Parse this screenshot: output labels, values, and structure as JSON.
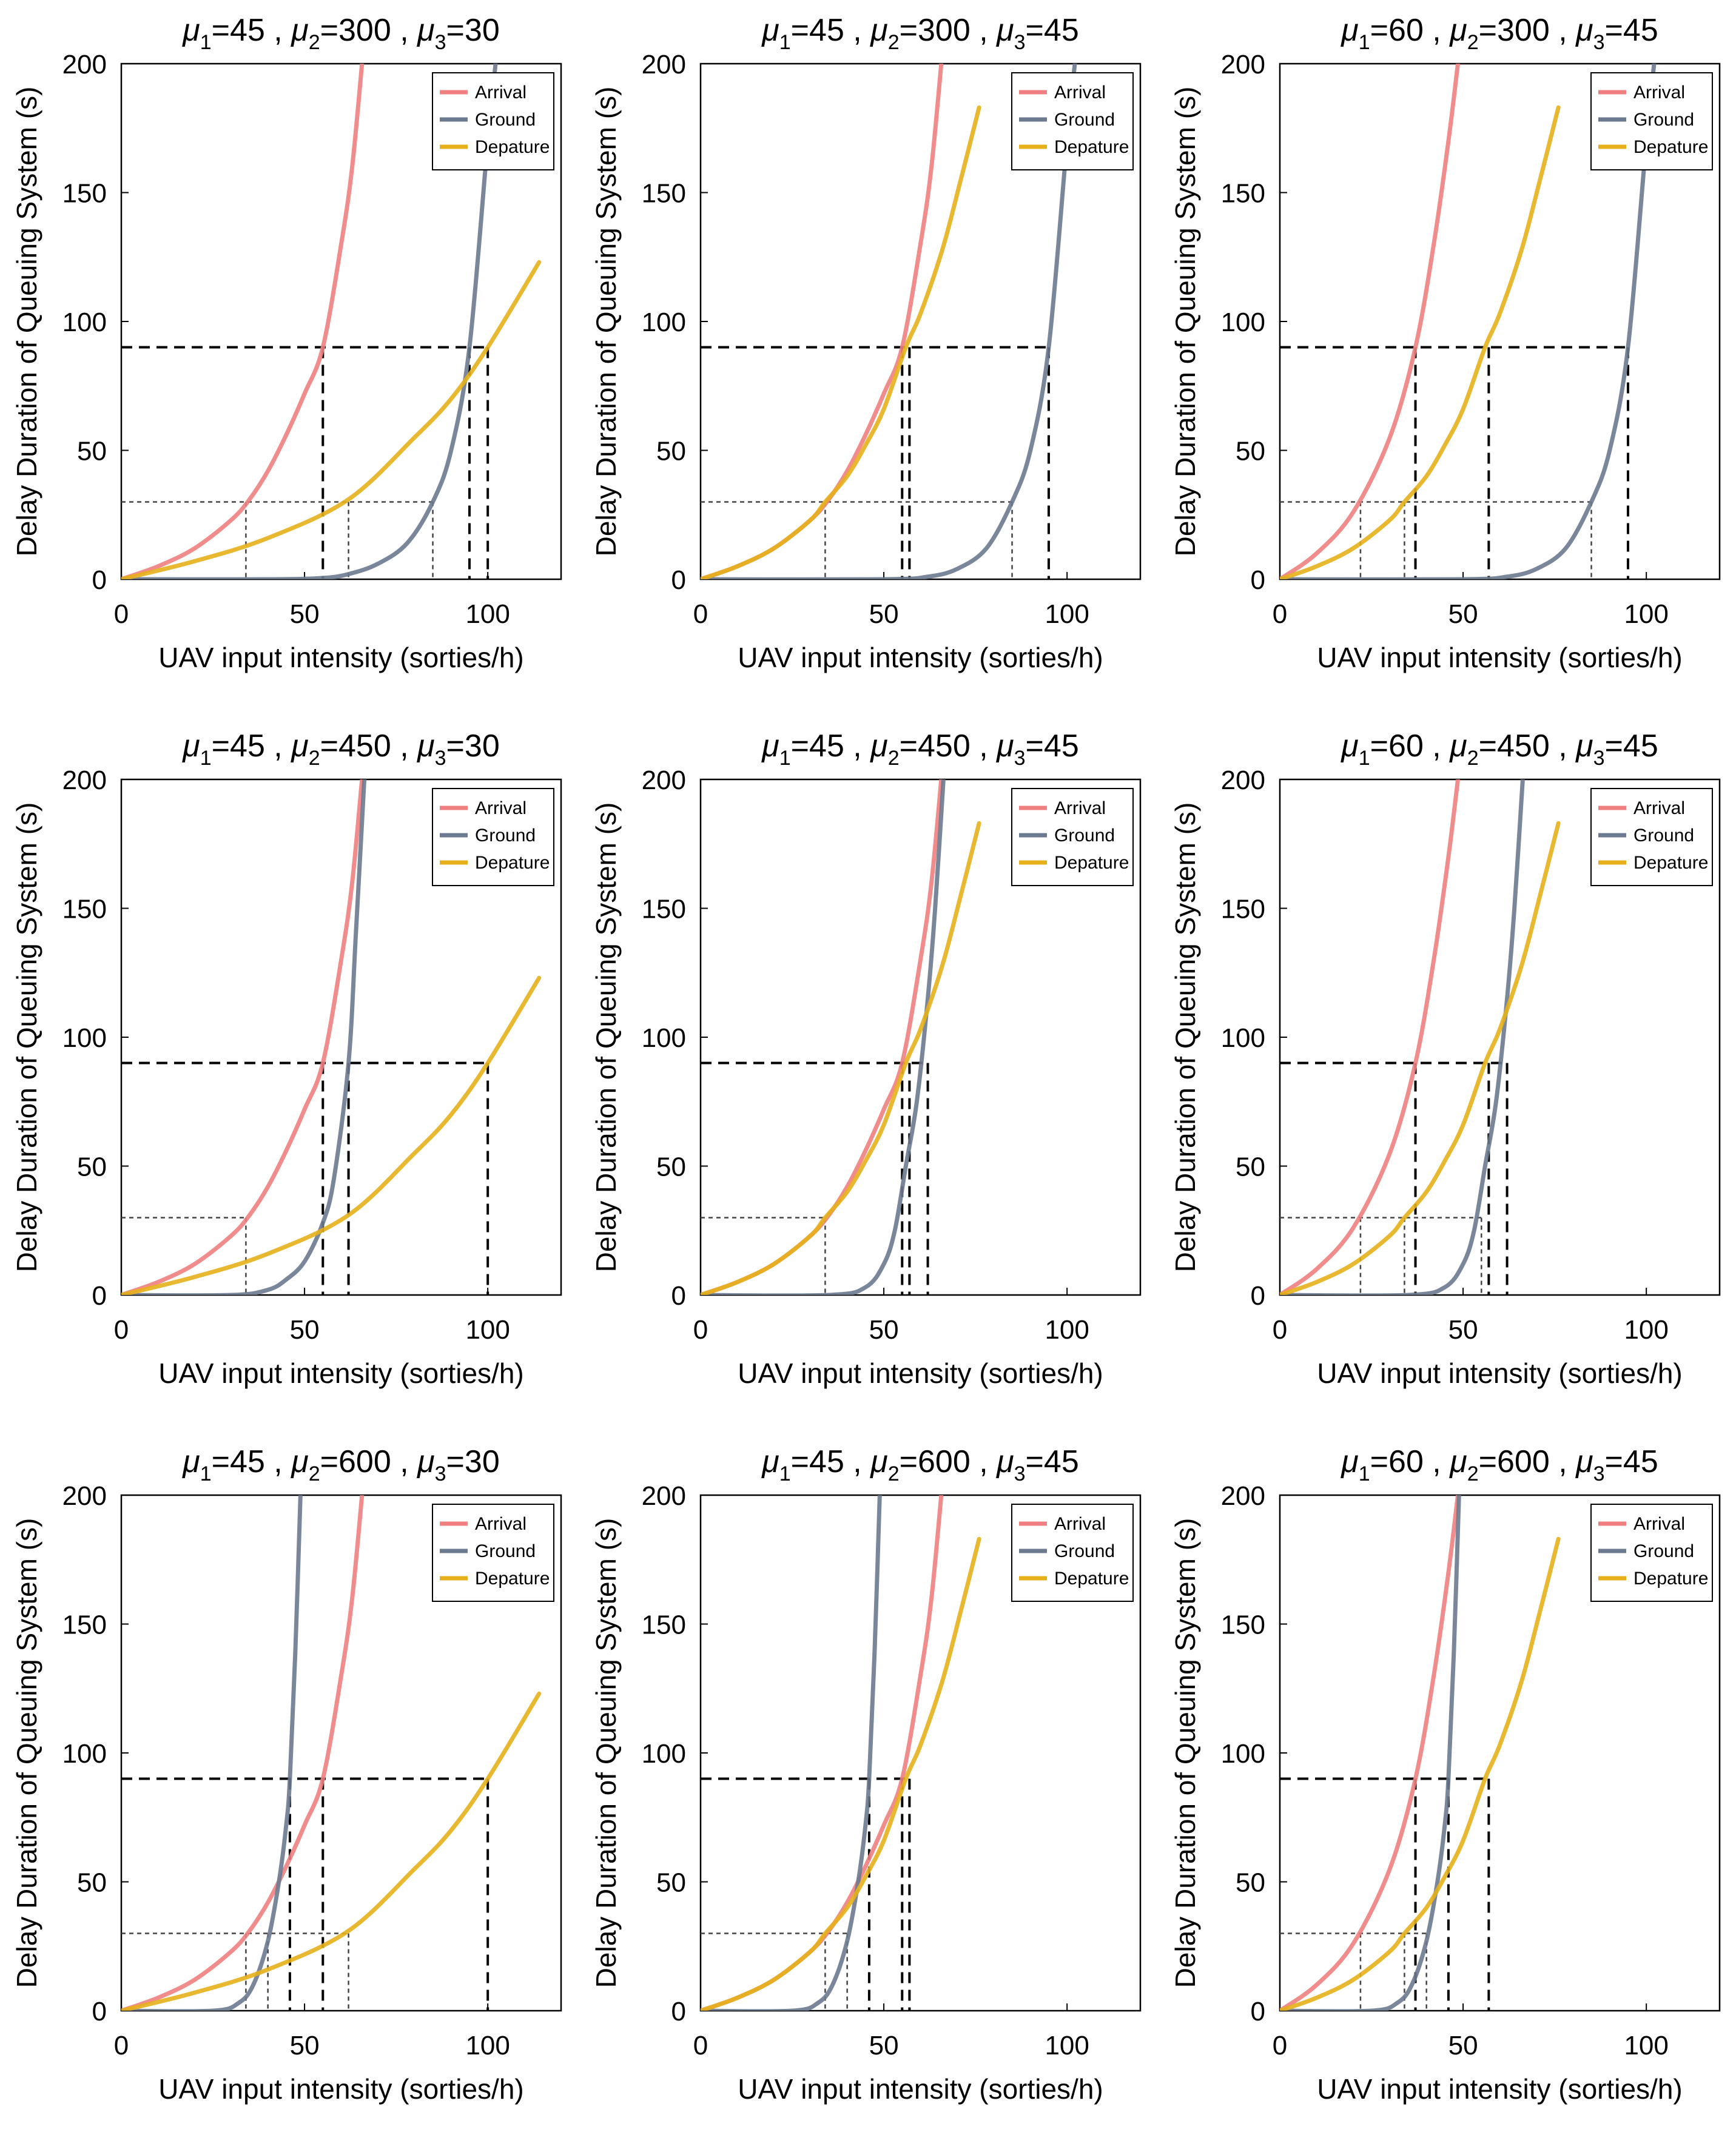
{
  "figure": {
    "xlabel": "UAV input intensity (sorties/h)",
    "ylabel": "Delay Duration of Queuing System (s)",
    "legend": [
      "Arrival",
      "Ground",
      "Depature"
    ],
    "colors": {
      "arrival": "#f08080",
      "ground": "#6b7a8f",
      "departure": "#e5b01a"
    }
  },
  "chart_data": [
    {
      "type": "line",
      "title_parts": [
        "μ",
        "1",
        "=45 , ",
        "μ",
        "2",
        "=300 , ",
        "μ",
        "3",
        "=30"
      ],
      "xlim": [
        0,
        120
      ],
      "ylim": [
        0,
        200
      ],
      "xticks": [
        0,
        50,
        100
      ],
      "yticks": [
        0,
        50,
        100,
        150,
        200
      ],
      "xlabel": "UAV input intensity (sorties/h)",
      "ylabel": "Delay Duration of Queuing System (s)",
      "series": [
        {
          "name": "Arrival",
          "x": [
            0,
            10,
            20,
            30,
            35,
            40,
            45,
            50,
            55,
            60,
            63,
            66
          ],
          "y": [
            0,
            5,
            12,
            23,
            31,
            42,
            56,
            72,
            90,
            130,
            160,
            205
          ]
        },
        {
          "name": "Ground",
          "x": [
            0,
            40,
            55,
            62,
            70,
            78,
            85,
            90,
            95,
            100,
            102.5
          ],
          "y": [
            0,
            0,
            0.5,
            2,
            6,
            14,
            30,
            50,
            90,
            170,
            205
          ]
        },
        {
          "name": "Depature",
          "x": [
            0,
            20,
            40,
            62,
            80,
            90,
            100,
            114
          ],
          "y": [
            0,
            7,
            16,
            31,
            55,
            70,
            90,
            123
          ]
        }
      ],
      "ref_lines": {
        "major_y": 90,
        "major_x": [
          55,
          95,
          100
        ],
        "minor_y": 30,
        "minor_x": [
          34,
          62,
          85
        ]
      }
    },
    {
      "type": "line",
      "title_parts": [
        "μ",
        "1",
        "=45 , ",
        "μ",
        "2",
        "=300 , ",
        "μ",
        "3",
        "=45"
      ],
      "xlim": [
        0,
        120
      ],
      "ylim": [
        0,
        200
      ],
      "xticks": [
        0,
        50,
        100
      ],
      "yticks": [
        0,
        50,
        100,
        150,
        200
      ],
      "xlabel": "UAV input intensity (sorties/h)",
      "ylabel": "Delay Duration of Queuing System (s)",
      "series": [
        {
          "name": "Arrival",
          "x": [
            0,
            10,
            20,
            30,
            35,
            40,
            45,
            50,
            55,
            60,
            63,
            66
          ],
          "y": [
            0,
            5,
            12,
            23,
            31,
            42,
            56,
            72,
            90,
            130,
            160,
            205
          ]
        },
        {
          "name": "Ground",
          "x": [
            0,
            50,
            62,
            70,
            78,
            85,
            90,
            95,
            100,
            102.5
          ],
          "y": [
            0,
            0,
            1,
            4,
            12,
            30,
            50,
            90,
            170,
            205
          ]
        },
        {
          "name": "Depature",
          "x": [
            0,
            10,
            20,
            30,
            34,
            40,
            45,
            50,
            56,
            60,
            66,
            71,
            76
          ],
          "y": [
            0,
            5,
            12,
            23,
            30,
            40,
            52,
            66,
            90,
            103,
            128,
            155,
            183
          ]
        }
      ],
      "ref_lines": {
        "major_y": 90,
        "major_x": [
          55,
          57,
          95
        ],
        "minor_y": 30,
        "minor_x": [
          34,
          85
        ]
      }
    },
    {
      "type": "line",
      "title_parts": [
        "μ",
        "1",
        "=60 , ",
        "μ",
        "2",
        "=300 , ",
        "μ",
        "3",
        "=45"
      ],
      "xlim": [
        0,
        120
      ],
      "ylim": [
        0,
        200
      ],
      "xticks": [
        0,
        50,
        100
      ],
      "yticks": [
        0,
        50,
        100,
        150,
        200
      ],
      "xlabel": "UAV input intensity (sorties/h)",
      "ylabel": "Delay Duration of Queuing System (s)",
      "series": [
        {
          "name": "Arrival",
          "x": [
            0,
            10,
            20,
            30,
            37,
            42,
            46,
            49
          ],
          "y": [
            0,
            10,
            26,
            55,
            90,
            130,
            170,
            205
          ]
        },
        {
          "name": "Ground",
          "x": [
            0,
            50,
            62,
            70,
            78,
            85,
            90,
            95,
            100,
            102.5
          ],
          "y": [
            0,
            0,
            1,
            4,
            12,
            30,
            50,
            90,
            170,
            205
          ]
        },
        {
          "name": "Depature",
          "x": [
            0,
            10,
            20,
            30,
            34,
            40,
            45,
            50,
            56,
            60,
            66,
            71,
            76
          ],
          "y": [
            0,
            5,
            12,
            23,
            30,
            40,
            52,
            66,
            90,
            103,
            128,
            155,
            183
          ]
        }
      ],
      "ref_lines": {
        "major_y": 90,
        "major_x": [
          37,
          57,
          95
        ],
        "minor_y": 30,
        "minor_x": [
          22,
          34,
          85
        ]
      }
    },
    {
      "type": "line",
      "title_parts": [
        "μ",
        "1",
        "=45 , ",
        "μ",
        "2",
        "=450 , ",
        "μ",
        "3",
        "=30"
      ],
      "xlim": [
        0,
        120
      ],
      "ylim": [
        0,
        200
      ],
      "xticks": [
        0,
        50,
        100
      ],
      "yticks": [
        0,
        50,
        100,
        150,
        200
      ],
      "xlabel": "UAV input intensity (sorties/h)",
      "ylabel": "Delay Duration of Queuing System (s)",
      "series": [
        {
          "name": "Arrival",
          "x": [
            0,
            10,
            20,
            30,
            35,
            40,
            45,
            50,
            55,
            60,
            63,
            66
          ],
          "y": [
            0,
            5,
            12,
            23,
            31,
            42,
            56,
            72,
            90,
            130,
            160,
            205
          ]
        },
        {
          "name": "Ground",
          "x": [
            0,
            30,
            40,
            45,
            50,
            55,
            58,
            62,
            64,
            66.5
          ],
          "y": [
            0,
            0,
            2,
            6,
            13,
            28,
            45,
            90,
            140,
            205
          ]
        },
        {
          "name": "Depature",
          "x": [
            0,
            20,
            40,
            62,
            80,
            90,
            100,
            114
          ],
          "y": [
            0,
            7,
            16,
            31,
            55,
            70,
            90,
            123
          ]
        }
      ],
      "ref_lines": {
        "major_y": 90,
        "major_x": [
          55,
          62,
          100
        ],
        "minor_y": 30,
        "minor_x": [
          34
        ]
      }
    },
    {
      "type": "line",
      "title_parts": [
        "μ",
        "1",
        "=45 , ",
        "μ",
        "2",
        "=450 , ",
        "μ",
        "3",
        "=45"
      ],
      "xlim": [
        0,
        120
      ],
      "ylim": [
        0,
        200
      ],
      "xticks": [
        0,
        50,
        100
      ],
      "yticks": [
        0,
        50,
        100,
        150,
        200
      ],
      "xlabel": "UAV input intensity (sorties/h)",
      "ylabel": "Delay Duration of Queuing System (s)",
      "series": [
        {
          "name": "Arrival",
          "x": [
            0,
            10,
            20,
            30,
            35,
            40,
            45,
            50,
            55,
            60,
            63,
            66
          ],
          "y": [
            0,
            5,
            12,
            23,
            31,
            42,
            56,
            72,
            90,
            130,
            160,
            205
          ]
        },
        {
          "name": "Ground",
          "x": [
            0,
            35,
            45,
            50,
            53,
            56,
            59,
            62,
            64,
            66.5
          ],
          "y": [
            0,
            0,
            3,
            12,
            25,
            50,
            75,
            115,
            150,
            205
          ]
        },
        {
          "name": "Depature",
          "x": [
            0,
            10,
            20,
            30,
            34,
            40,
            45,
            50,
            56,
            60,
            66,
            71,
            76
          ],
          "y": [
            0,
            5,
            12,
            23,
            30,
            40,
            52,
            66,
            90,
            103,
            128,
            155,
            183
          ]
        }
      ],
      "ref_lines": {
        "major_y": 90,
        "major_x": [
          55,
          57,
          62
        ],
        "minor_y": 30,
        "minor_x": [
          34
        ]
      }
    },
    {
      "type": "line",
      "title_parts": [
        "μ",
        "1",
        "=60 , ",
        "μ",
        "2",
        "=450 , ",
        "μ",
        "3",
        "=45"
      ],
      "xlim": [
        0,
        120
      ],
      "ylim": [
        0,
        200
      ],
      "xticks": [
        0,
        50,
        100
      ],
      "yticks": [
        0,
        50,
        100,
        150,
        200
      ],
      "xlabel": "UAV input intensity (sorties/h)",
      "ylabel": "Delay Duration of Queuing System (s)",
      "series": [
        {
          "name": "Arrival",
          "x": [
            0,
            10,
            20,
            30,
            37,
            42,
            46,
            49
          ],
          "y": [
            0,
            10,
            26,
            55,
            90,
            130,
            170,
            205
          ]
        },
        {
          "name": "Ground",
          "x": [
            0,
            35,
            45,
            50,
            53,
            56,
            59,
            62,
            64,
            66.5
          ],
          "y": [
            0,
            0,
            3,
            12,
            25,
            50,
            75,
            115,
            150,
            205
          ]
        },
        {
          "name": "Depature",
          "x": [
            0,
            10,
            20,
            30,
            34,
            40,
            45,
            50,
            56,
            60,
            66,
            71,
            76
          ],
          "y": [
            0,
            5,
            12,
            23,
            30,
            40,
            52,
            66,
            90,
            103,
            128,
            155,
            183
          ]
        }
      ],
      "ref_lines": {
        "major_y": 90,
        "major_x": [
          37,
          57,
          62
        ],
        "minor_y": 30,
        "minor_x": [
          22,
          34,
          55
        ]
      }
    },
    {
      "type": "line",
      "title_parts": [
        "μ",
        "1",
        "=45 , ",
        "μ",
        "2",
        "=600 , ",
        "μ",
        "3",
        "=30"
      ],
      "xlim": [
        0,
        120
      ],
      "ylim": [
        0,
        200
      ],
      "xticks": [
        0,
        50,
        100
      ],
      "yticks": [
        0,
        50,
        100,
        150,
        200
      ],
      "xlabel": "UAV input intensity (sorties/h)",
      "ylabel": "Delay Duration of Queuing System (s)",
      "series": [
        {
          "name": "Arrival",
          "x": [
            0,
            10,
            20,
            30,
            35,
            40,
            45,
            50,
            55,
            60,
            63,
            66
          ],
          "y": [
            0,
            5,
            12,
            23,
            31,
            42,
            56,
            72,
            90,
            130,
            160,
            205
          ]
        },
        {
          "name": "Ground",
          "x": [
            0,
            25,
            32,
            36,
            40,
            43,
            45,
            46,
            47.5,
            49
          ],
          "y": [
            0,
            0,
            3,
            10,
            27,
            50,
            72,
            90,
            140,
            205
          ]
        },
        {
          "name": "Depature",
          "x": [
            0,
            20,
            40,
            62,
            80,
            90,
            100,
            114
          ],
          "y": [
            0,
            7,
            16,
            31,
            55,
            70,
            90,
            123
          ]
        }
      ],
      "ref_lines": {
        "major_y": 90,
        "major_x": [
          46,
          55,
          100
        ],
        "minor_y": 30,
        "minor_x": [
          34,
          40,
          62
        ]
      }
    },
    {
      "type": "line",
      "title_parts": [
        "μ",
        "1",
        "=45 , ",
        "μ",
        "2",
        "=600 , ",
        "μ",
        "3",
        "=45"
      ],
      "xlim": [
        0,
        120
      ],
      "ylim": [
        0,
        200
      ],
      "xticks": [
        0,
        50,
        100
      ],
      "yticks": [
        0,
        50,
        100,
        150,
        200
      ],
      "xlabel": "UAV input intensity (sorties/h)",
      "ylabel": "Delay Duration of Queuing System (s)",
      "series": [
        {
          "name": "Arrival",
          "x": [
            0,
            10,
            20,
            30,
            35,
            40,
            45,
            50,
            55,
            60,
            63,
            66
          ],
          "y": [
            0,
            5,
            12,
            23,
            31,
            42,
            56,
            72,
            90,
            130,
            160,
            205
          ]
        },
        {
          "name": "Ground",
          "x": [
            0,
            25,
            32,
            36,
            40,
            43,
            45,
            46,
            47.5,
            49
          ],
          "y": [
            0,
            0,
            3,
            10,
            27,
            50,
            72,
            90,
            140,
            205
          ]
        },
        {
          "name": "Depature",
          "x": [
            0,
            10,
            20,
            30,
            34,
            40,
            45,
            50,
            56,
            60,
            66,
            71,
            76
          ],
          "y": [
            0,
            5,
            12,
            23,
            30,
            40,
            52,
            66,
            90,
            103,
            128,
            155,
            183
          ]
        }
      ],
      "ref_lines": {
        "major_y": 90,
        "major_x": [
          46,
          55,
          57
        ],
        "minor_y": 30,
        "minor_x": [
          34,
          40
        ]
      }
    },
    {
      "type": "line",
      "title_parts": [
        "μ",
        "1",
        "=60 , ",
        "μ",
        "2",
        "=600 , ",
        "μ",
        "3",
        "=45"
      ],
      "xlim": [
        0,
        120
      ],
      "ylim": [
        0,
        200
      ],
      "xticks": [
        0,
        50,
        100
      ],
      "yticks": [
        0,
        50,
        100,
        150,
        200
      ],
      "xlabel": "UAV input intensity (sorties/h)",
      "ylabel": "Delay Duration of Queuing System (s)",
      "series": [
        {
          "name": "Arrival",
          "x": [
            0,
            10,
            20,
            30,
            37,
            42,
            46,
            49
          ],
          "y": [
            0,
            10,
            26,
            55,
            90,
            130,
            170,
            205
          ]
        },
        {
          "name": "Ground",
          "x": [
            0,
            25,
            32,
            36,
            40,
            43,
            45,
            46,
            47.5,
            49
          ],
          "y": [
            0,
            0,
            3,
            10,
            27,
            50,
            72,
            90,
            140,
            205
          ]
        },
        {
          "name": "Depature",
          "x": [
            0,
            10,
            20,
            30,
            34,
            40,
            45,
            50,
            56,
            60,
            66,
            71,
            76
          ],
          "y": [
            0,
            5,
            12,
            23,
            30,
            40,
            52,
            66,
            90,
            103,
            128,
            155,
            183
          ]
        }
      ],
      "ref_lines": {
        "major_y": 90,
        "major_x": [
          37,
          46,
          57
        ],
        "minor_y": 30,
        "minor_x": [
          22,
          34,
          40
        ]
      }
    }
  ]
}
